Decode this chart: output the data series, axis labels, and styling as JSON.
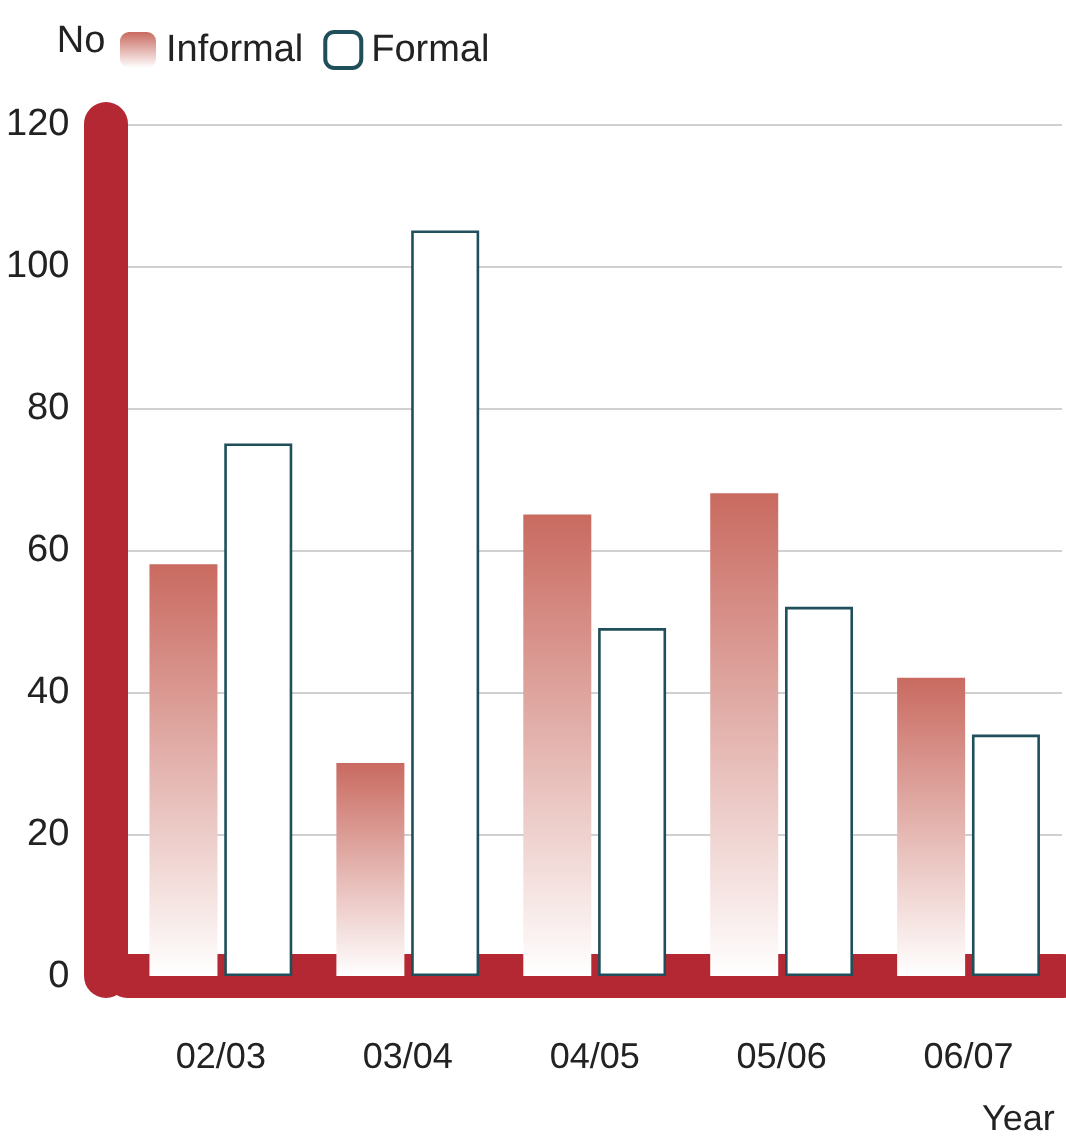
{
  "chart_data": {
    "type": "bar",
    "ylabel": "No",
    "xlabel": "Year",
    "categories": [
      "02/03",
      "03/04",
      "04/05",
      "05/06",
      "06/07"
    ],
    "series": [
      {
        "name": "Informal",
        "color": "#c96a60",
        "values": [
          58,
          30,
          65,
          68,
          42
        ]
      },
      {
        "name": "Formal",
        "color": "#ffffff",
        "values": [
          75,
          105,
          49,
          52,
          34
        ]
      }
    ],
    "ylim": [
      0,
      120
    ],
    "yticks": [
      0,
      20,
      40,
      60,
      80,
      100,
      120
    ],
    "grid": "y",
    "legend": "top left"
  }
}
